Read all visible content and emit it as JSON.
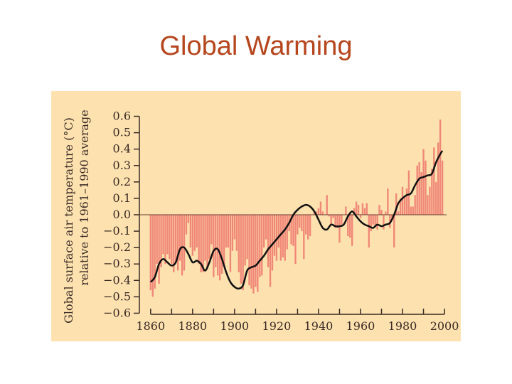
{
  "slide": {
    "title": "Global Warming"
  },
  "chart_data": {
    "type": "bar",
    "xlabel": "",
    "ylabel_line1": "Global surface air temperature (°C)",
    "ylabel_line2": "relative to 1961–1990 average",
    "xlim": [
      1856,
      2001
    ],
    "ylim": [
      -0.65,
      0.65
    ],
    "x_ticks": [
      "1860",
      "1880",
      "1900",
      "1920",
      "1940",
      "1960",
      "1980",
      "2000"
    ],
    "y_ticks": [
      "0.6",
      "0.5",
      "0.4",
      "0.3",
      "0.2",
      "0.1",
      "0.0",
      "−0.1",
      "−0.2",
      "−0.3",
      "−0.4",
      "−0.5",
      "−0.6"
    ],
    "colors": {
      "panel": "#fde2b0",
      "bars": "#f08878",
      "smoothed_line": "#111111",
      "axis": "#3a2a24",
      "title": "#b5461d"
    },
    "annual_anomaly": {
      "years": [
        1860,
        1861,
        1862,
        1863,
        1864,
        1865,
        1866,
        1867,
        1868,
        1869,
        1870,
        1871,
        1872,
        1873,
        1874,
        1875,
        1876,
        1877,
        1878,
        1879,
        1880,
        1881,
        1882,
        1883,
        1884,
        1885,
        1886,
        1887,
        1888,
        1889,
        1890,
        1891,
        1892,
        1893,
        1894,
        1895,
        1896,
        1897,
        1898,
        1899,
        1900,
        1901,
        1902,
        1903,
        1904,
        1905,
        1906,
        1907,
        1908,
        1909,
        1910,
        1911,
        1912,
        1913,
        1914,
        1915,
        1916,
        1917,
        1918,
        1919,
        1920,
        1921,
        1922,
        1923,
        1924,
        1925,
        1926,
        1927,
        1928,
        1929,
        1930,
        1931,
        1932,
        1933,
        1934,
        1935,
        1936,
        1937,
        1938,
        1939,
        1940,
        1941,
        1942,
        1943,
        1944,
        1945,
        1946,
        1947,
        1948,
        1949,
        1950,
        1951,
        1952,
        1953,
        1954,
        1955,
        1956,
        1957,
        1958,
        1959,
        1960,
        1961,
        1962,
        1963,
        1964,
        1965,
        1966,
        1967,
        1968,
        1969,
        1970,
        1971,
        1972,
        1973,
        1974,
        1975,
        1976,
        1977,
        1978,
        1979,
        1980,
        1981,
        1982,
        1983,
        1984,
        1985,
        1986,
        1987,
        1988,
        1989,
        1990,
        1991,
        1992,
        1993,
        1994,
        1995,
        1996,
        1997,
        1998,
        1999
      ],
      "values": [
        -0.46,
        -0.5,
        -0.45,
        -0.3,
        -0.42,
        -0.32,
        -0.24,
        -0.3,
        -0.24,
        -0.27,
        -0.3,
        -0.35,
        -0.29,
        -0.34,
        -0.28,
        -0.37,
        -0.34,
        -0.12,
        -0.05,
        -0.2,
        -0.25,
        -0.22,
        -0.2,
        -0.3,
        -0.35,
        -0.35,
        -0.28,
        -0.33,
        -0.27,
        -0.18,
        -0.38,
        -0.32,
        -0.37,
        -0.4,
        -0.36,
        -0.3,
        -0.2,
        -0.2,
        -0.35,
        -0.22,
        -0.15,
        -0.22,
        -0.35,
        -0.42,
        -0.46,
        -0.31,
        -0.27,
        -0.43,
        -0.45,
        -0.48,
        -0.44,
        -0.47,
        -0.38,
        -0.37,
        -0.2,
        -0.15,
        -0.32,
        -0.44,
        -0.34,
        -0.25,
        -0.28,
        -0.2,
        -0.28,
        -0.26,
        -0.28,
        -0.21,
        -0.1,
        -0.18,
        -0.19,
        -0.3,
        -0.12,
        -0.08,
        -0.1,
        -0.27,
        -0.12,
        -0.15,
        -0.13,
        0.0,
        0.02,
        0.02,
        0.04,
        0.08,
        0.02,
        0.0,
        0.12,
        -0.01,
        -0.06,
        -0.02,
        -0.08,
        -0.08,
        -0.17,
        -0.06,
        0.0,
        0.05,
        -0.13,
        -0.14,
        -0.19,
        0.04,
        0.08,
        0.06,
        -0.02,
        0.07,
        0.04,
        0.07,
        -0.2,
        -0.1,
        -0.06,
        -0.07,
        -0.09,
        0.06,
        0.03,
        -0.09,
        0.02,
        0.16,
        -0.08,
        -0.02,
        -0.2,
        0.13,
        0.02,
        0.1,
        0.17,
        0.11,
        0.16,
        0.27,
        0.05,
        0.05,
        0.12,
        0.3,
        0.32,
        0.26,
        0.4,
        0.33,
        0.12,
        0.17,
        0.28,
        0.41,
        0.2,
        0.44,
        0.58,
        0.33
      ]
    },
    "smoothed_trend": {
      "years": [
        1860,
        1862,
        1864,
        1866,
        1868,
        1870,
        1872,
        1874,
        1876,
        1878,
        1880,
        1882,
        1884,
        1886,
        1888,
        1890,
        1892,
        1894,
        1896,
        1898,
        1900,
        1902,
        1904,
        1906,
        1908,
        1910,
        1912,
        1914,
        1916,
        1918,
        1920,
        1922,
        1924,
        1926,
        1928,
        1930,
        1932,
        1934,
        1936,
        1938,
        1940,
        1942,
        1944,
        1946,
        1948,
        1950,
        1952,
        1954,
        1956,
        1958,
        1960,
        1962,
        1964,
        1966,
        1968,
        1970,
        1972,
        1974,
        1976,
        1978,
        1980,
        1982,
        1984,
        1986,
        1988,
        1990,
        1992,
        1994,
        1996,
        1998,
        1999
      ],
      "values": [
        -0.41,
        -0.38,
        -0.3,
        -0.27,
        -0.29,
        -0.31,
        -0.29,
        -0.21,
        -0.2,
        -0.24,
        -0.29,
        -0.28,
        -0.3,
        -0.34,
        -0.29,
        -0.22,
        -0.21,
        -0.27,
        -0.35,
        -0.41,
        -0.44,
        -0.45,
        -0.43,
        -0.34,
        -0.32,
        -0.31,
        -0.28,
        -0.25,
        -0.21,
        -0.18,
        -0.15,
        -0.12,
        -0.09,
        -0.05,
        0.0,
        0.03,
        0.05,
        0.06,
        0.05,
        0.02,
        -0.03,
        -0.08,
        -0.09,
        -0.06,
        -0.07,
        -0.07,
        -0.06,
        -0.01,
        0.02,
        -0.01,
        -0.04,
        -0.06,
        -0.07,
        -0.08,
        -0.06,
        -0.07,
        -0.06,
        -0.05,
        0.0,
        0.07,
        0.1,
        0.12,
        0.13,
        0.18,
        0.22,
        0.23,
        0.24,
        0.25,
        0.32,
        0.37,
        0.39
      ]
    }
  }
}
